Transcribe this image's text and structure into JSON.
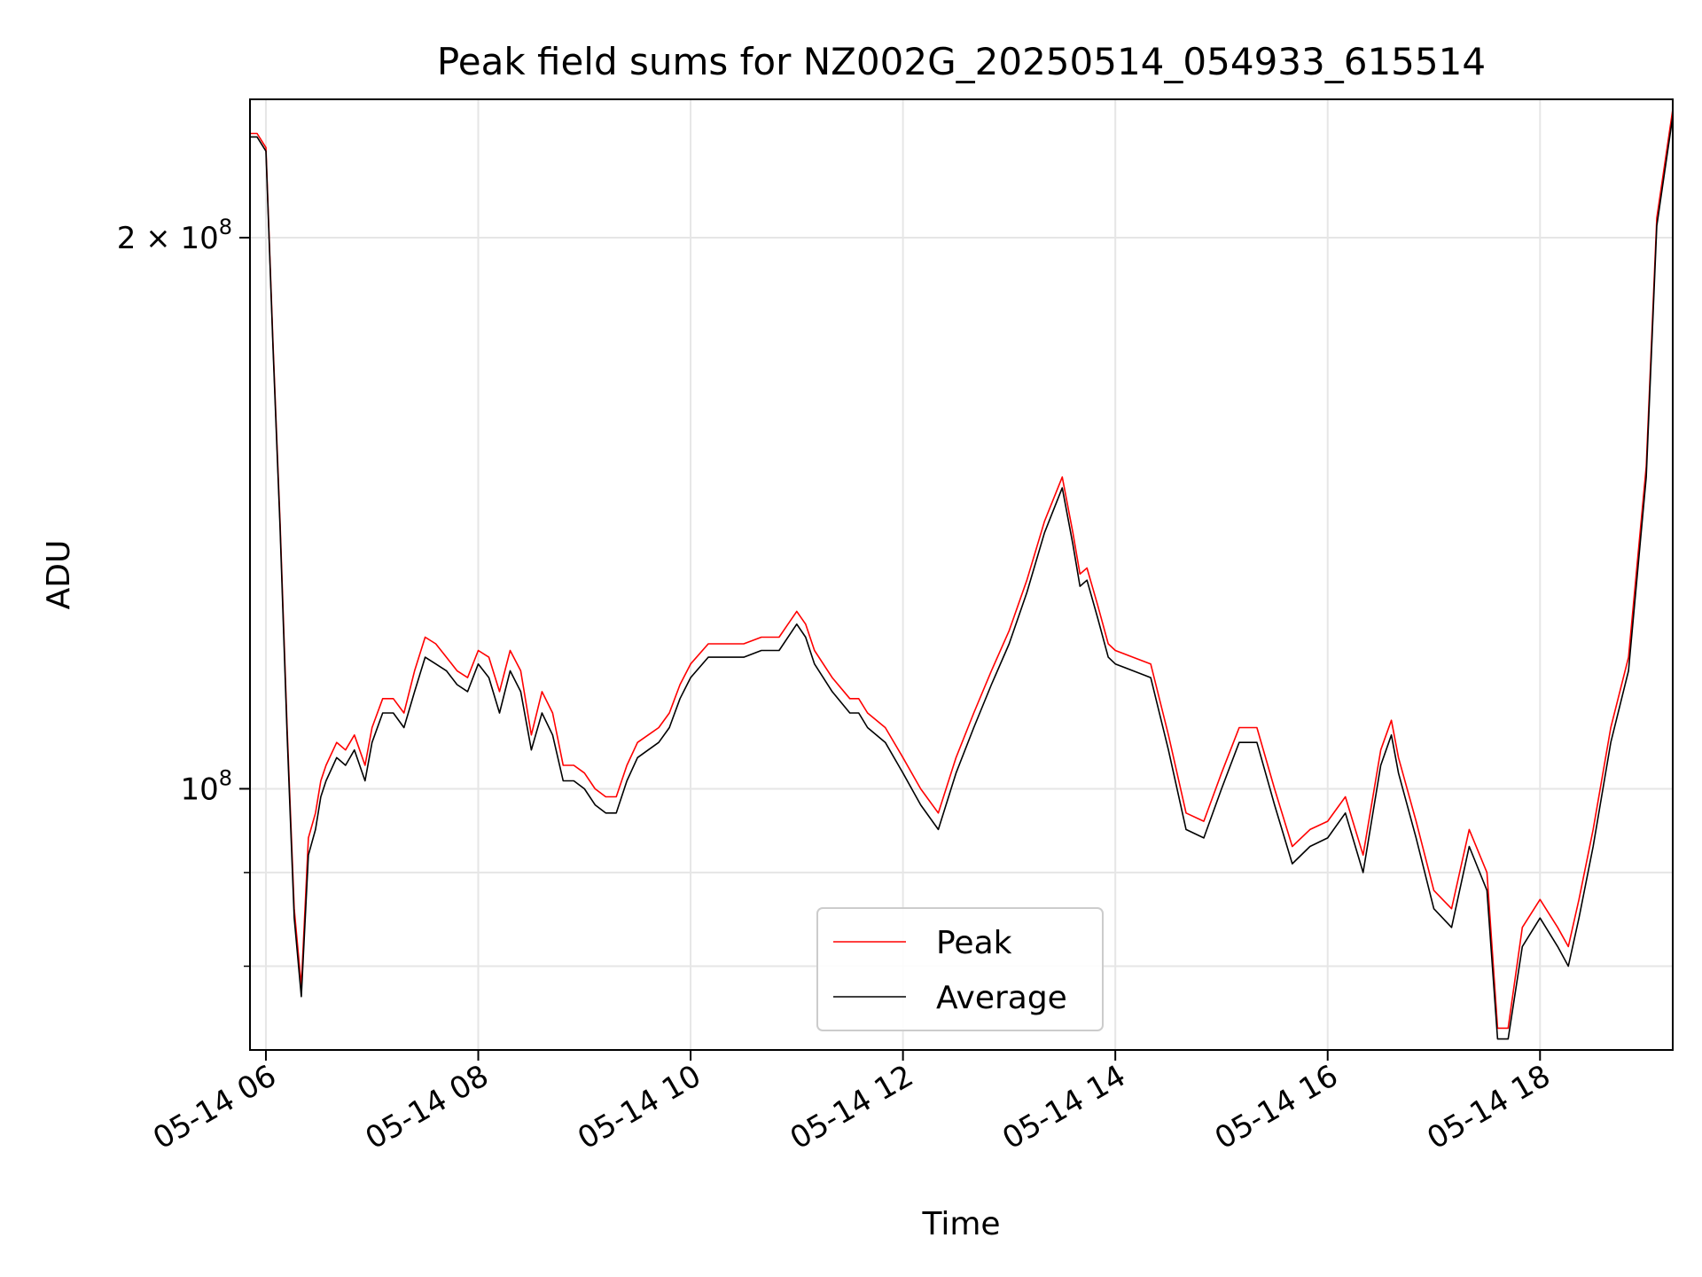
{
  "chart_data": {
    "type": "line",
    "title": "Peak field sums for NZ002G_20250514_054933_615514",
    "xlabel": "Time",
    "ylabel": "ADU",
    "y_scale": "log",
    "grid": true,
    "legend_position": "lower-center",
    "xlim": [
      "2025-05-14 05:51",
      "2025-05-14 19:15"
    ],
    "ylim": [
      72000000,
      238000000
    ],
    "x_ticks": [
      "05-14 06",
      "05-14 08",
      "05-14 10",
      "05-14 12",
      "05-14 14",
      "05-14 16",
      "05-14 18"
    ],
    "x_tick_times": [
      "2025-05-14 06:00",
      "2025-05-14 08:00",
      "2025-05-14 10:00",
      "2025-05-14 12:00",
      "2025-05-14 14:00",
      "2025-05-14 16:00",
      "2025-05-14 18:00"
    ],
    "y_ticks": [
      {
        "value": 100000000,
        "mantissa": "",
        "exponent": "8"
      },
      {
        "value": 200000000,
        "mantissa": "2",
        "exponent": "8"
      }
    ],
    "y_minor_ticks": [
      80000000,
      90000000
    ],
    "series": [
      {
        "name": "Peak",
        "color": "#ff0000",
        "x": [
          "05:51",
          "05:55",
          "06:00",
          "06:04",
          "06:08",
          "06:12",
          "06:16",
          "06:20",
          "06:24",
          "06:28",
          "06:31",
          "06:34",
          "06:40",
          "06:45",
          "06:50",
          "06:56",
          "07:00",
          "07:06",
          "07:12",
          "07:18",
          "07:24",
          "07:30",
          "07:36",
          "07:42",
          "07:48",
          "07:54",
          "08:00",
          "08:06",
          "08:12",
          "08:18",
          "08:24",
          "08:30",
          "08:36",
          "08:42",
          "08:48",
          "08:54",
          "09:00",
          "09:06",
          "09:12",
          "09:18",
          "09:24",
          "09:30",
          "09:36",
          "09:42",
          "09:48",
          "09:54",
          "10:00",
          "10:10",
          "10:20",
          "10:30",
          "10:40",
          "10:50",
          "11:00",
          "11:05",
          "11:10",
          "11:20",
          "11:30",
          "11:35",
          "11:40",
          "11:50",
          "12:00",
          "12:10",
          "12:20",
          "12:30",
          "12:40",
          "12:50",
          "13:00",
          "13:10",
          "13:20",
          "13:30",
          "13:36",
          "13:40",
          "13:44",
          "13:50",
          "13:56",
          "14:00",
          "14:10",
          "14:20",
          "14:30",
          "14:40",
          "14:50",
          "15:00",
          "15:10",
          "15:20",
          "15:30",
          "15:40",
          "15:50",
          "16:00",
          "16:10",
          "16:20",
          "16:30",
          "16:36",
          "16:40",
          "16:50",
          "17:00",
          "17:10",
          "17:20",
          "17:30",
          "17:36",
          "17:42",
          "17:50",
          "18:00",
          "18:10",
          "18:16",
          "18:22",
          "18:30",
          "18:40",
          "18:50",
          "19:00",
          "19:06",
          "19:15"
        ],
        "y": [
          228000000,
          228000000,
          224000000,
          175000000,
          140000000,
          108000000,
          86000000,
          78000000,
          94000000,
          97000000,
          101000000,
          103000000,
          106000000,
          105000000,
          107000000,
          103000000,
          108000000,
          112000000,
          112000000,
          110000000,
          116000000,
          121000000,
          120000000,
          118000000,
          116000000,
          115000000,
          119000000,
          118000000,
          113000000,
          119000000,
          116000000,
          107000000,
          113000000,
          110000000,
          103000000,
          103000000,
          102000000,
          100000000,
          99000000,
          99000000,
          103000000,
          106000000,
          107000000,
          108000000,
          110000000,
          114000000,
          117000000,
          120000000,
          120000000,
          120000000,
          121000000,
          121000000,
          125000000,
          123000000,
          119000000,
          115000000,
          112000000,
          112000000,
          110000000,
          108000000,
          104000000,
          100000000,
          97000000,
          104000000,
          110000000,
          116000000,
          122000000,
          130000000,
          140000000,
          148000000,
          138000000,
          131000000,
          132000000,
          126000000,
          120000000,
          119000000,
          118000000,
          117000000,
          107000000,
          97000000,
          96000000,
          102000000,
          108000000,
          108000000,
          100000000,
          93000000,
          95000000,
          96000000,
          99000000,
          92000000,
          105000000,
          109000000,
          104000000,
          96000000,
          88000000,
          86000000,
          95000000,
          90000000,
          74000000,
          74000000,
          84000000,
          87000000,
          84000000,
          82000000,
          87000000,
          95000000,
          108000000,
          118000000,
          150000000,
          205000000,
          235000000
        ]
      },
      {
        "name": "Average",
        "color": "#000000",
        "x": [
          "05:51",
          "05:55",
          "06:00",
          "06:04",
          "06:08",
          "06:12",
          "06:16",
          "06:20",
          "06:24",
          "06:28",
          "06:31",
          "06:34",
          "06:40",
          "06:45",
          "06:50",
          "06:56",
          "07:00",
          "07:06",
          "07:12",
          "07:18",
          "07:24",
          "07:30",
          "07:36",
          "07:42",
          "07:48",
          "07:54",
          "08:00",
          "08:06",
          "08:12",
          "08:18",
          "08:24",
          "08:30",
          "08:36",
          "08:42",
          "08:48",
          "08:54",
          "09:00",
          "09:06",
          "09:12",
          "09:18",
          "09:24",
          "09:30",
          "09:36",
          "09:42",
          "09:48",
          "09:54",
          "10:00",
          "10:10",
          "10:20",
          "10:30",
          "10:40",
          "10:50",
          "11:00",
          "11:05",
          "11:10",
          "11:20",
          "11:30",
          "11:35",
          "11:40",
          "11:50",
          "12:00",
          "12:10",
          "12:20",
          "12:30",
          "12:40",
          "12:50",
          "13:00",
          "13:10",
          "13:20",
          "13:30",
          "13:36",
          "13:40",
          "13:44",
          "13:50",
          "13:56",
          "14:00",
          "14:10",
          "14:20",
          "14:30",
          "14:40",
          "14:50",
          "15:00",
          "15:10",
          "15:20",
          "15:30",
          "15:40",
          "15:50",
          "16:00",
          "16:10",
          "16:20",
          "16:30",
          "16:36",
          "16:40",
          "16:50",
          "17:00",
          "17:10",
          "17:20",
          "17:30",
          "17:36",
          "17:42",
          "17:50",
          "18:00",
          "18:10",
          "18:16",
          "18:22",
          "18:30",
          "18:40",
          "18:50",
          "19:00",
          "19:06",
          "19:15"
        ],
        "y": [
          227000000,
          227000000,
          223000000,
          174000000,
          139000000,
          107000000,
          85000000,
          77000000,
          92000000,
          95000000,
          99000000,
          101000000,
          104000000,
          103000000,
          105000000,
          101000000,
          106000000,
          110000000,
          110000000,
          108000000,
          113000000,
          118000000,
          117000000,
          116000000,
          114000000,
          113000000,
          117000000,
          115000000,
          110000000,
          116000000,
          113000000,
          105000000,
          110000000,
          107000000,
          101000000,
          101000000,
          100000000,
          98000000,
          97000000,
          97000000,
          101000000,
          104000000,
          105000000,
          106000000,
          108000000,
          112000000,
          115000000,
          118000000,
          118000000,
          118000000,
          119000000,
          119000000,
          123000000,
          121000000,
          117000000,
          113000000,
          110000000,
          110000000,
          108000000,
          106000000,
          102000000,
          98000000,
          95000000,
          102000000,
          108000000,
          114000000,
          120000000,
          128000000,
          138000000,
          146000000,
          136000000,
          129000000,
          130000000,
          124000000,
          118000000,
          117000000,
          116000000,
          115000000,
          105000000,
          95000000,
          94000000,
          100000000,
          106000000,
          106000000,
          98000000,
          91000000,
          93000000,
          94000000,
          97000000,
          90000000,
          103000000,
          107000000,
          102000000,
          94000000,
          86000000,
          84000000,
          93000000,
          88000000,
          73000000,
          73000000,
          82000000,
          85000000,
          82000000,
          80000000,
          85000000,
          93000000,
          106000000,
          116000000,
          148000000,
          203000000,
          233000000
        ]
      }
    ]
  }
}
